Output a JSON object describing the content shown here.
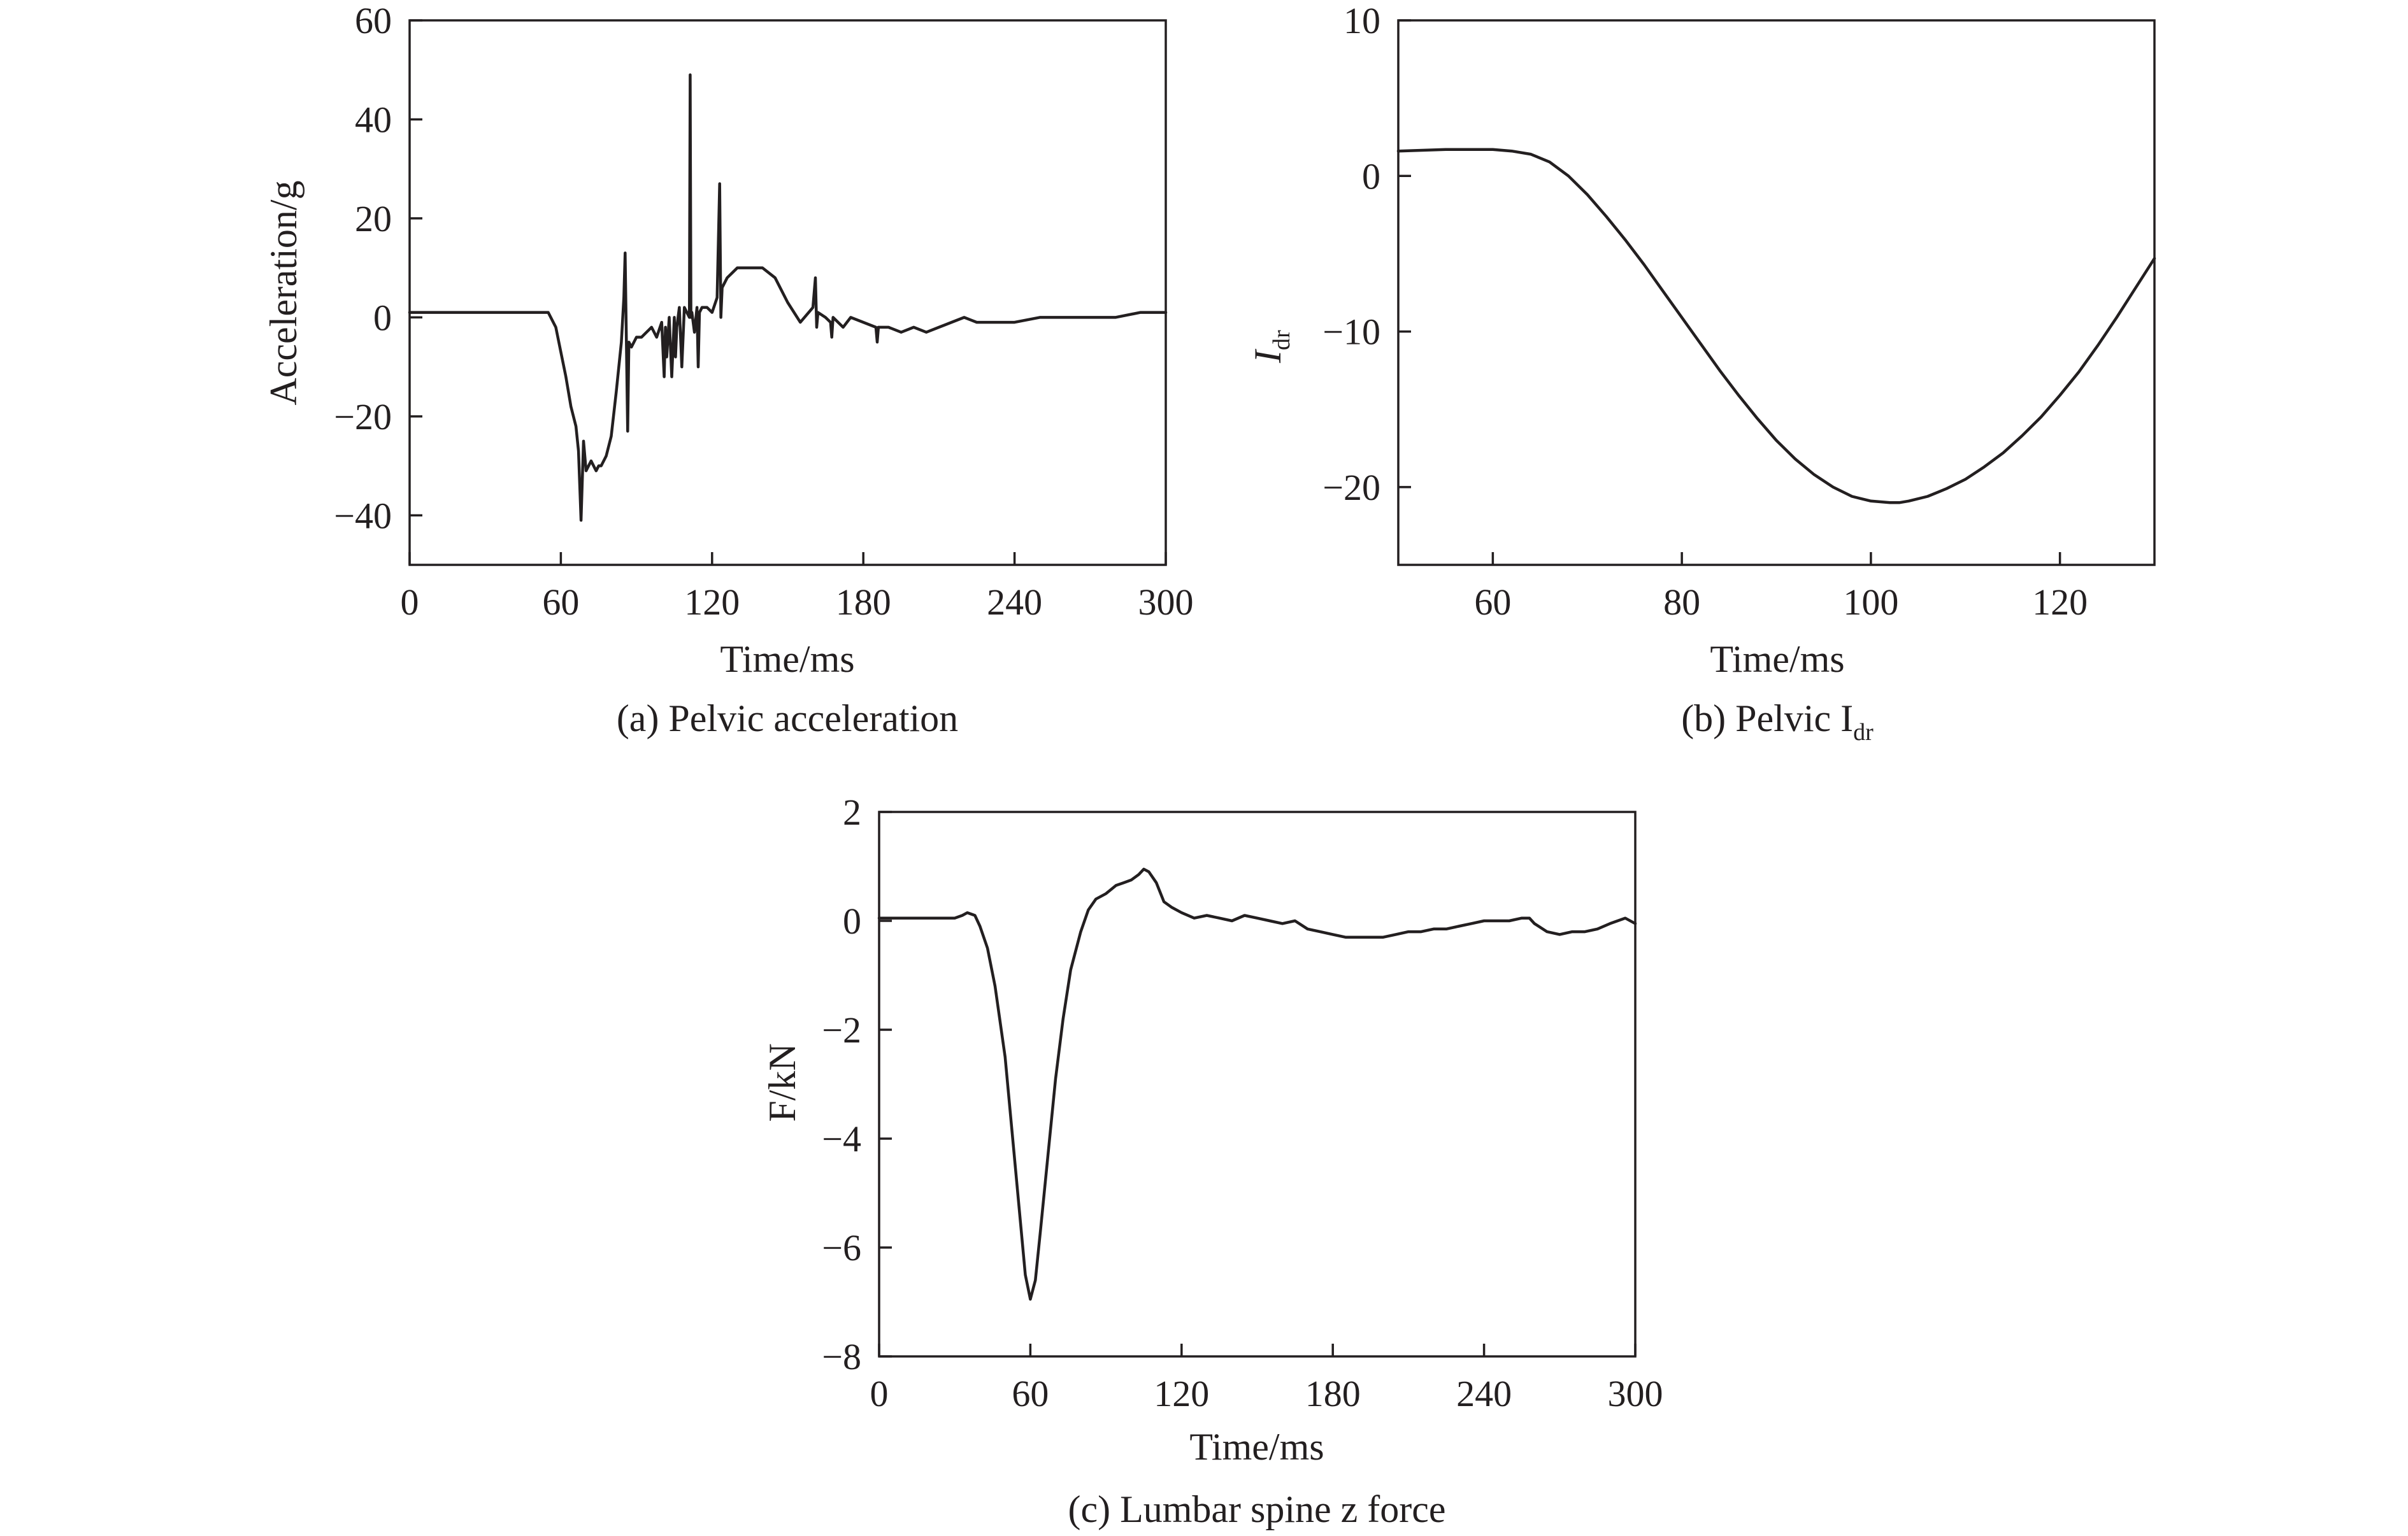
{
  "chart_data": [
    {
      "type": "line",
      "xlabel": "Time/ms",
      "ylabel": "Acceleration/g",
      "caption": "(a) Pelvic acceleration",
      "xlim": [
        0,
        300
      ],
      "ylim": [
        -50,
        60
      ],
      "xticks": [
        0,
        60,
        120,
        180,
        240,
        300
      ],
      "yticks": [
        -40,
        -20,
        0,
        20,
        40,
        60
      ],
      "xtick_labels": [
        "0",
        "60",
        "120",
        "180",
        "240",
        "300"
      ],
      "ytick_labels": [
        "−40",
        "−20",
        "0",
        "20",
        "40",
        "60"
      ],
      "grid": false,
      "series": [
        {
          "x": [
            0,
            20,
            40,
            55,
            58,
            60,
            62,
            64,
            66,
            67,
            68,
            69,
            70,
            72,
            73,
            74,
            75,
            76,
            78,
            80,
            82,
            84,
            85,
            85.5,
            86,
            86.5,
            87,
            88,
            90,
            92,
            94,
            96,
            98,
            100,
            101,
            101.5,
            102,
            103,
            104,
            105,
            105.5,
            106,
            107,
            108,
            109,
            110,
            111,
            111.3,
            111.6,
            112,
            113,
            114,
            114.5,
            115,
            116,
            118,
            120,
            122,
            123,
            123.5,
            124,
            126,
            128,
            130,
            135,
            140,
            145,
            150,
            155,
            160,
            161,
            161.5,
            162,
            165,
            167,
            167.5,
            168,
            170,
            172,
            175,
            180,
            185,
            185.5,
            186,
            190,
            195,
            200,
            205,
            210,
            215,
            220,
            225,
            230,
            235,
            240,
            250,
            260,
            270,
            280,
            290,
            300
          ],
          "y": [
            1,
            1,
            1,
            1,
            -2,
            -7,
            -12,
            -18,
            -22,
            -27,
            -41,
            -25,
            -31,
            -29,
            -30,
            -31,
            -30,
            -30,
            -28,
            -24,
            -15,
            -5,
            4,
            13,
            -5,
            -23,
            -5,
            -6,
            -4,
            -4,
            -3,
            -2,
            -4,
            -1,
            -12,
            -2,
            -8,
            0,
            -12,
            0,
            -8,
            -2,
            2,
            -10,
            2,
            1,
            0,
            49,
            0,
            1,
            -3,
            2,
            -10,
            1,
            2,
            2,
            1,
            4,
            27,
            0,
            6,
            8,
            9,
            10,
            10,
            10,
            8,
            3,
            -1,
            2,
            8,
            -2,
            1,
            0,
            -1,
            -4,
            0,
            -1,
            -2,
            0,
            -1,
            -2,
            -5,
            -2,
            -2,
            -3,
            -2,
            -3,
            -2,
            -1,
            0,
            -1,
            -1,
            -1,
            -1,
            0,
            0,
            0,
            0,
            1,
            1
          ]
        }
      ]
    },
    {
      "type": "line",
      "xlabel": "Time/ms",
      "ylabel": "I",
      "ylabel_sub": "dr",
      "caption": "(b) Pelvic I",
      "caption_sub": "dr",
      "xlim": [
        50,
        130
      ],
      "ylim": [
        -25,
        10
      ],
      "xticks": [
        60,
        80,
        100,
        120
      ],
      "yticks": [
        -20,
        -10,
        0,
        10
      ],
      "xtick_labels": [
        "60",
        "80",
        "100",
        "120"
      ],
      "ytick_labels": [
        "−20",
        "−10",
        "0",
        "10"
      ],
      "grid": false,
      "series": [
        {
          "x": [
            50,
            55,
            60,
            62,
            64,
            66,
            68,
            70,
            72,
            74,
            76,
            78,
            80,
            82,
            84,
            86,
            88,
            90,
            92,
            94,
            96,
            98,
            100,
            102,
            103,
            104,
            106,
            108,
            110,
            112,
            114,
            116,
            118,
            120,
            122,
            124,
            126,
            128,
            130
          ],
          "y": [
            1.6,
            1.7,
            1.7,
            1.6,
            1.4,
            0.9,
            0.0,
            -1.2,
            -2.6,
            -4.1,
            -5.7,
            -7.4,
            -9.1,
            -10.8,
            -12.5,
            -14.1,
            -15.6,
            -17.0,
            -18.2,
            -19.2,
            -20.0,
            -20.6,
            -20.9,
            -21.0,
            -21.0,
            -20.9,
            -20.6,
            -20.1,
            -19.5,
            -18.7,
            -17.8,
            -16.7,
            -15.5,
            -14.1,
            -12.6,
            -10.9,
            -9.1,
            -7.2,
            -5.3
          ]
        }
      ]
    },
    {
      "type": "line",
      "xlabel": "Time/ms",
      "ylabel": "F/kN",
      "caption": "(c) Lumbar spine z force",
      "xlim": [
        0,
        300
      ],
      "ylim": [
        -8,
        2
      ],
      "xticks": [
        0,
        60,
        120,
        180,
        240,
        300
      ],
      "yticks": [
        -8,
        -6,
        -4,
        -2,
        0,
        2
      ],
      "xtick_labels": [
        "0",
        "60",
        "120",
        "180",
        "240",
        "300"
      ],
      "ytick_labels": [
        "−8",
        "−6",
        "−4",
        "−2",
        "0",
        "2"
      ],
      "grid": false,
      "series": [
        {
          "x": [
            0,
            10,
            20,
            30,
            33,
            35,
            38,
            40,
            43,
            46,
            50,
            53,
            56,
            58,
            60,
            62,
            64,
            67,
            70,
            73,
            76,
            80,
            83,
            86,
            90,
            94,
            97,
            100,
            103,
            105,
            107,
            110,
            113,
            116,
            120,
            125,
            130,
            135,
            140,
            145,
            150,
            155,
            160,
            165,
            170,
            175,
            180,
            185,
            190,
            195,
            200,
            205,
            210,
            215,
            220,
            225,
            230,
            235,
            240,
            245,
            250,
            255,
            258,
            260,
            265,
            270,
            275,
            280,
            285,
            290,
            293,
            296,
            300
          ],
          "y": [
            0.05,
            0.05,
            0.05,
            0.05,
            0.1,
            0.15,
            0.1,
            -0.1,
            -0.5,
            -1.2,
            -2.5,
            -4.0,
            -5.5,
            -6.5,
            -6.95,
            -6.6,
            -5.7,
            -4.3,
            -2.9,
            -1.8,
            -0.9,
            -0.2,
            0.2,
            0.4,
            0.5,
            0.65,
            0.7,
            0.75,
            0.85,
            0.95,
            0.9,
            0.7,
            0.35,
            0.25,
            0.15,
            0.05,
            0.1,
            0.05,
            0.0,
            0.1,
            0.05,
            0.0,
            -0.05,
            0.0,
            -0.15,
            -0.2,
            -0.25,
            -0.3,
            -0.3,
            -0.3,
            -0.3,
            -0.25,
            -0.2,
            -0.2,
            -0.15,
            -0.15,
            -0.1,
            -0.05,
            0.0,
            0.0,
            0.0,
            0.05,
            0.05,
            -0.05,
            -0.2,
            -0.25,
            -0.2,
            -0.2,
            -0.15,
            -0.05,
            0.0,
            0.05,
            -0.05
          ]
        }
      ]
    }
  ]
}
